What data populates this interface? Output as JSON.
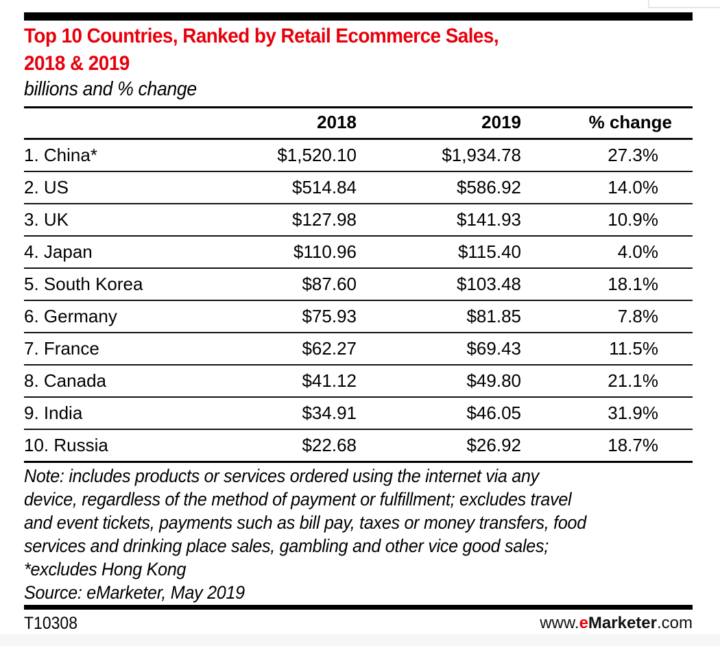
{
  "chart_data": {
    "type": "table",
    "title": "Top 10 Countries, Ranked by Retail Ecommerce Sales, 2018 & 2019",
    "subtitle": "billions and % change",
    "columns": [
      "",
      "2018",
      "2019",
      "% change"
    ],
    "rows": [
      {
        "label": "1. China*",
        "values": [
          "$1,520.10",
          "$1,934.78",
          "27.3%"
        ]
      },
      {
        "label": "2. US",
        "values": [
          "$514.84",
          "$586.92",
          "14.0%"
        ]
      },
      {
        "label": "3. UK",
        "values": [
          "$127.98",
          "$141.93",
          "10.9%"
        ]
      },
      {
        "label": "4. Japan",
        "values": [
          "$110.96",
          "$115.40",
          "4.0%"
        ]
      },
      {
        "label": "5. South Korea",
        "values": [
          "$87.60",
          "$103.48",
          "18.1%"
        ]
      },
      {
        "label": "6. Germany",
        "values": [
          "$75.93",
          "$81.85",
          "7.8%"
        ]
      },
      {
        "label": "7. France",
        "values": [
          "$62.27",
          "$69.43",
          "11.5%"
        ]
      },
      {
        "label": "8. Canada",
        "values": [
          "$41.12",
          "$49.80",
          "21.1%"
        ]
      },
      {
        "label": "9. India",
        "values": [
          "$34.91",
          "$46.05",
          "31.9%"
        ]
      },
      {
        "label": "10. Russia",
        "values": [
          "$22.68",
          "$26.92",
          "18.7%"
        ]
      }
    ],
    "numeric": {
      "countries": [
        "China",
        "US",
        "UK",
        "Japan",
        "South Korea",
        "Germany",
        "France",
        "Canada",
        "India",
        "Russia"
      ],
      "sales_2018_billions": [
        1520.1,
        514.84,
        127.98,
        110.96,
        87.6,
        75.93,
        62.27,
        41.12,
        34.91,
        22.68
      ],
      "sales_2019_billions": [
        1934.78,
        586.92,
        141.93,
        115.4,
        103.48,
        81.85,
        69.43,
        49.8,
        46.05,
        26.92
      ],
      "pct_change": [
        27.3,
        14.0,
        10.9,
        4.0,
        18.1,
        7.8,
        11.5,
        21.1,
        31.9,
        18.7
      ]
    }
  },
  "header": {
    "title_line1": "Top 10 Countries, Ranked by Retail Ecommerce Sales,",
    "title_line2": "2018 & 2019",
    "subtitle": "billions and % change"
  },
  "notes": {
    "line1": "Note: includes products or services ordered using the internet via any",
    "line2": "device, regardless of the method of payment or fulfillment; excludes travel",
    "line3": "and event tickets, payments such as bill pay, taxes or money transfers, food",
    "line4": "services and drinking place sales, gambling and other vice good sales;",
    "line5": "*excludes Hong Kong",
    "source": "Source: eMarketer, May 2019"
  },
  "footer": {
    "chart_id": "T10308",
    "brand_prefix": "www.",
    "brand_e": "e",
    "brand_name": "Marketer",
    "brand_suffix": ".com"
  },
  "colors": {
    "title": "#e8000b",
    "text": "#000000",
    "rule": "#000000"
  }
}
